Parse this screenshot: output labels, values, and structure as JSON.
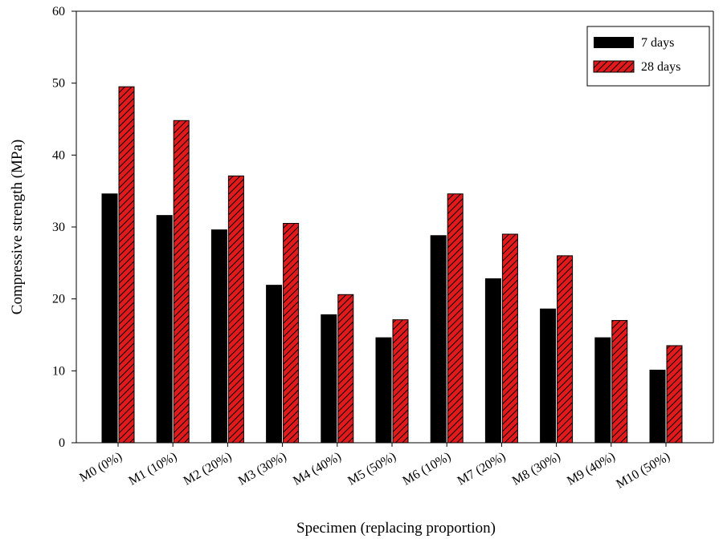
{
  "chart_data": {
    "type": "bar",
    "xlabel": "Specimen (replacing proportion)",
    "ylabel": "Compressive strength (MPa)",
    "ylim": [
      0,
      60
    ],
    "yticks": [
      0,
      10,
      20,
      30,
      40,
      50,
      60
    ],
    "categories": [
      "M0 (0%)",
      "M1 (10%)",
      "M2 (20%)",
      "M3 (30%)",
      "M4 (40%)",
      "M5 (50%)",
      "M6 (10%)",
      "M7 (20%)",
      "M8 (30%)",
      "M9 (40%)",
      "M10 (50%)"
    ],
    "series": [
      {
        "name": "7 days",
        "color": "#000000",
        "pattern": "solid",
        "values": [
          34.6,
          31.6,
          29.6,
          21.9,
          17.8,
          14.6,
          28.8,
          22.8,
          18.6,
          14.6,
          10.1
        ]
      },
      {
        "name": "28 days",
        "color": "#e31a1c",
        "pattern": "diagonal-hatch",
        "values": [
          49.5,
          44.8,
          37.1,
          30.5,
          20.6,
          17.1,
          34.6,
          29.0,
          26.0,
          17.0,
          13.5
        ]
      }
    ],
    "legend": {
      "position": "top-right"
    },
    "grid": false
  }
}
